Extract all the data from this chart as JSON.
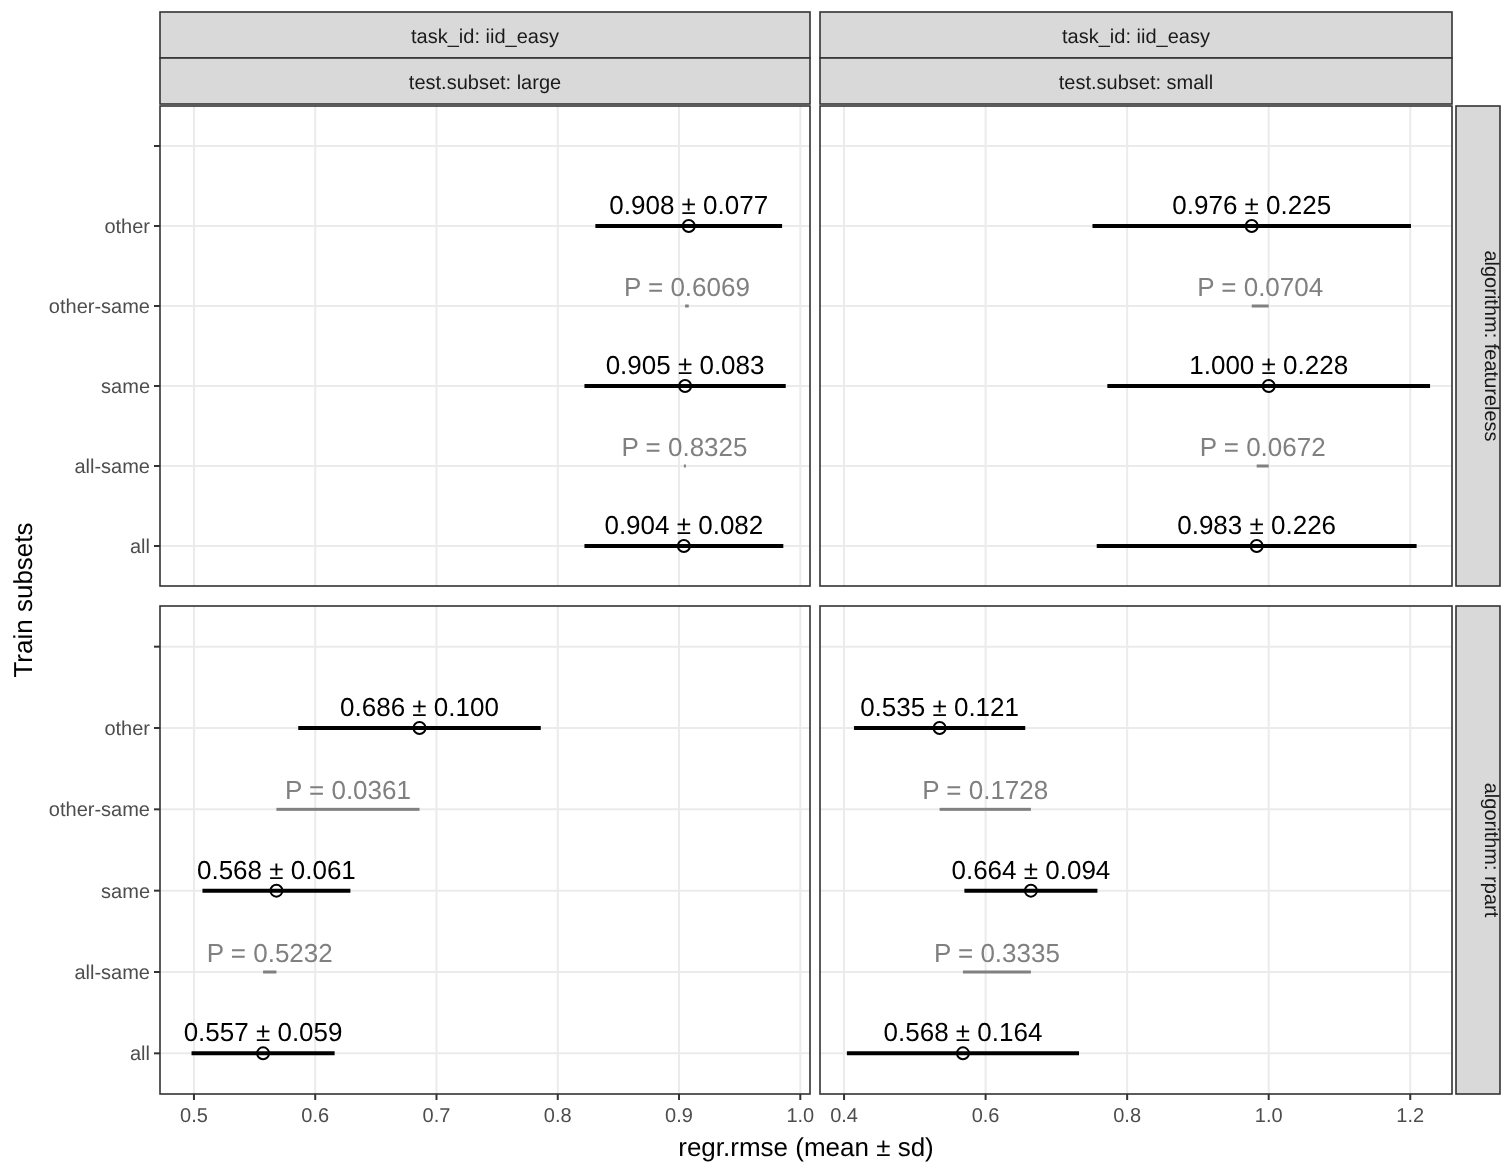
{
  "chart_data": [
    {
      "type": "scatter",
      "orientation": "horizontal",
      "title": "task_id: iid_easy",
      "subtitle": "test.subset: large",
      "ylabel": "Train subsets",
      "categories": [
        null,
        "other",
        "other-same",
        "same",
        "all-same",
        "all"
      ],
      "xlim": [
        0.472,
        1.008
      ],
      "xticks": [
        0.5,
        0.6,
        0.7,
        0.8,
        0.9,
        1
      ],
      "grid": true,
      "tick_labels": "y",
      "marker": "circle",
      "annotations": [
        {
          "text": "P = 0.6069",
          "x": 0.9065,
          "y": "other-same"
        },
        {
          "text": "P = 0.8325",
          "x": 0.9045,
          "y": "all-same"
        }
      ],
      "series": [
        {
          "color": "#000000",
          "values": [
            null,
            0.908,
            null,
            0.905,
            null,
            0.904
          ],
          "errors": [
            null,
            0.077,
            null,
            0.083,
            null,
            0.082
          ],
          "value_labels": [
            null,
            "0.908 ± 0.077",
            null,
            "0.905 ± 0.083",
            null,
            "0.904 ± 0.082"
          ]
        },
        {
          "type": "bar",
          "color": "#808080",
          "base": [
            null,
            null,
            0.905,
            null,
            0.904,
            null
          ],
          "values": [
            null,
            null,
            0.003,
            null,
            0.001,
            null
          ]
        }
      ]
    },
    {
      "type": "scatter",
      "orientation": "horizontal",
      "title": "task_id: iid_easy",
      "subtitle": "test.subset: small",
      "y2label": "algorithm: featureless",
      "categories": [
        null,
        "other",
        "other-same",
        "same",
        "all-same",
        "all"
      ],
      "xlim": [
        0.366,
        1.259
      ],
      "xticks": [
        0.4,
        0.6,
        0.8,
        1,
        1.2
      ],
      "grid": true,
      "tick_labels": false,
      "marker": "circle",
      "annotations": [
        {
          "text": "P = 0.0704",
          "x": 0.988,
          "y": "other-same"
        },
        {
          "text": "P = 0.0672",
          "x": 0.9915,
          "y": "all-same"
        }
      ],
      "series": [
        {
          "color": "#000000",
          "values": [
            null,
            0.976,
            null,
            1.0,
            null,
            0.983
          ],
          "errors": [
            null,
            0.225,
            null,
            0.228,
            null,
            0.226
          ],
          "value_labels": [
            null,
            "0.976 ± 0.225",
            null,
            "1.000 ± 0.228",
            null,
            "0.983 ± 0.226"
          ]
        },
        {
          "type": "bar",
          "color": "#808080",
          "base": [
            null,
            null,
            0.976,
            null,
            0.983,
            null
          ],
          "values": [
            null,
            null,
            0.024,
            null,
            0.017,
            null
          ]
        }
      ]
    },
    {
      "type": "scatter",
      "orientation": "horizontal",
      "xlabel": "regr.rmse (mean ± sd)",
      "categories": [
        null,
        "other",
        "other-same",
        "same",
        "all-same",
        "all"
      ],
      "xlim": [
        0.472,
        1.008
      ],
      "xticks": [
        0.5,
        0.6,
        0.7,
        0.8,
        0.9,
        {
          "value": 1,
          "label": "1.0"
        }
      ],
      "grid": true,
      "marker": "circle",
      "annotations": [
        {
          "text": "P = 0.0361",
          "x": 0.627,
          "y": "other-same"
        },
        {
          "text": "P = 0.5232",
          "x": 0.5625,
          "y": "all-same"
        }
      ],
      "series": [
        {
          "color": "#000000",
          "values": [
            null,
            0.686,
            null,
            0.568,
            null,
            0.557
          ],
          "errors": [
            null,
            0.1,
            null,
            0.061,
            null,
            0.059
          ],
          "value_labels": [
            null,
            "0.686 ± 0.100",
            null,
            "0.568 ± 0.061",
            null,
            "0.557 ± 0.059"
          ]
        },
        {
          "type": "bar",
          "color": "#808080",
          "base": [
            null,
            null,
            0.568,
            null,
            0.557,
            null
          ],
          "values": [
            null,
            null,
            0.118,
            null,
            0.011,
            null
          ]
        }
      ]
    },
    {
      "type": "scatter",
      "orientation": "horizontal",
      "y2label": "algorithm: rpart",
      "categories": [
        null,
        "other",
        "other-same",
        "same",
        "all-same",
        "all"
      ],
      "xlim": [
        0.366,
        1.259
      ],
      "xticks": [
        0.4,
        0.6,
        0.8,
        {
          "value": 1,
          "label": "1.0"
        },
        1.2
      ],
      "grid": true,
      "tick_labels": "x",
      "marker": "circle",
      "annotations": [
        {
          "text": "P = 0.1728",
          "x": 0.5995,
          "y": "other-same"
        },
        {
          "text": "P = 0.3335",
          "x": 0.616,
          "y": "all-same"
        }
      ],
      "series": [
        {
          "color": "#000000",
          "values": [
            null,
            0.535,
            null,
            0.664,
            null,
            0.568
          ],
          "errors": [
            null,
            0.121,
            null,
            0.094,
            null,
            0.164
          ],
          "value_labels": [
            null,
            "0.535 ± 0.121",
            null,
            "0.664 ± 0.094",
            null,
            "0.568 ± 0.164"
          ]
        },
        {
          "type": "bar",
          "color": "#808080",
          "base": [
            null,
            null,
            0.535,
            null,
            0.568,
            null
          ],
          "values": [
            null,
            null,
            0.129,
            null,
            0.096,
            null
          ]
        }
      ]
    }
  ]
}
